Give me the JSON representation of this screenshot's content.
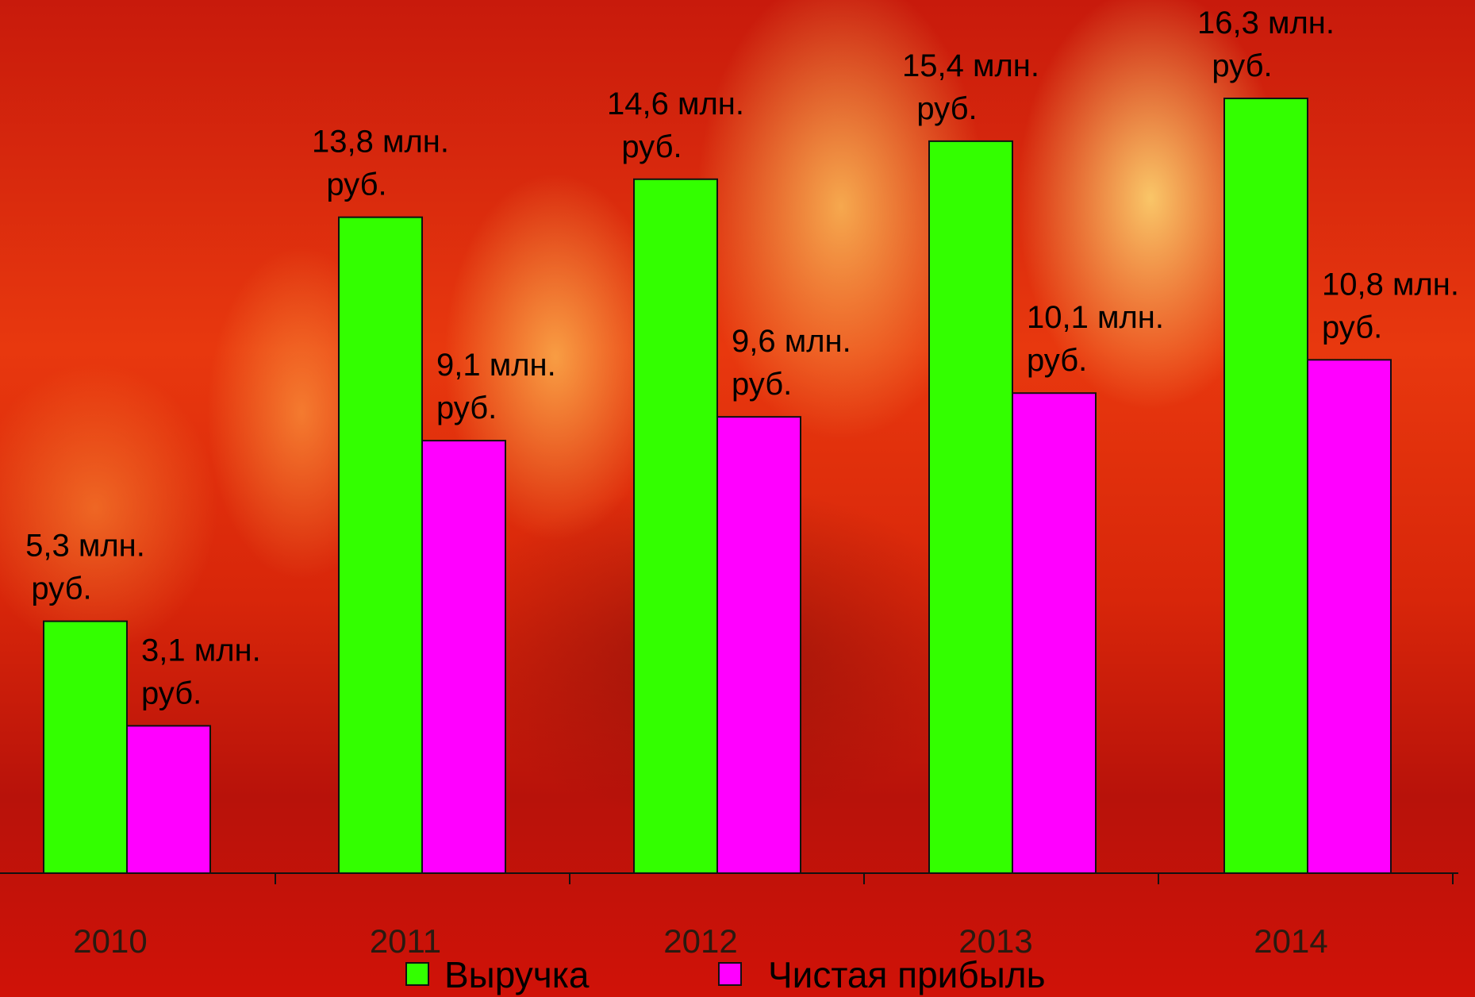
{
  "chart_data": {
    "type": "bar",
    "categories": [
      "2010",
      "2011",
      "2012",
      "2013",
      "2014"
    ],
    "series": [
      {
        "name": "Выручка",
        "color": "#33ff00",
        "values": [
          5.3,
          13.8,
          14.6,
          15.4,
          16.3
        ],
        "labels": [
          [
            "5,3 млн.",
            "руб."
          ],
          [
            "13,8 млн.",
            "руб."
          ],
          [
            "14,6 млн.",
            "руб."
          ],
          [
            "15,4 млн.",
            "руб."
          ],
          [
            "16,3 млн.",
            "руб."
          ]
        ]
      },
      {
        "name": "Чистая прибыль",
        "color": "#ff00ff",
        "values": [
          3.1,
          9.1,
          9.6,
          10.1,
          10.8
        ],
        "labels": [
          [
            "3,1 млн.",
            "руб."
          ],
          [
            "9,1 млн.",
            "руб."
          ],
          [
            "9,6 млн.",
            "руб."
          ],
          [
            "10,1 млн.",
            "руб."
          ],
          [
            "10,8 млн.",
            "руб."
          ]
        ]
      }
    ],
    "ylim": [
      0,
      16.5
    ],
    "legend_position": "bottom",
    "grid": false
  }
}
